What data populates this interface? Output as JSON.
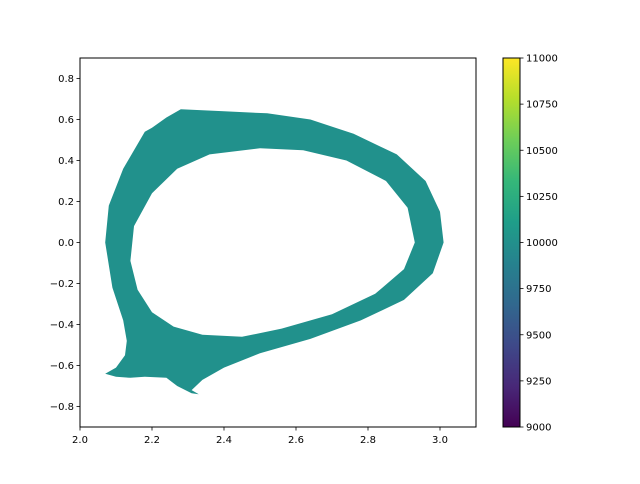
{
  "chart_data": {
    "type": "filled-contour",
    "title": "",
    "xlabel": "",
    "ylabel": "",
    "xlim": [
      2.0,
      3.1
    ],
    "ylim": [
      -0.9,
      0.9
    ],
    "x_ticks": [
      2.0,
      2.2,
      2.4,
      2.6,
      2.8,
      3.0
    ],
    "x_tick_labels": [
      "2.0",
      "2.2",
      "2.4",
      "2.6",
      "2.8",
      "3.0"
    ],
    "y_ticks": [
      0.8,
      0.6,
      0.4,
      0.2,
      0.0,
      -0.2,
      -0.4,
      -0.6,
      -0.8
    ],
    "y_tick_labels": [
      "0.8",
      "0.6",
      "0.4",
      "0.2",
      "0.0",
      "−0.2",
      "−0.4",
      "−0.6",
      "−0.8"
    ],
    "grid": false,
    "fill_value": 10000,
    "fill_color": "#21918c",
    "outer_boundary": [
      [
        2.28,
        0.65
      ],
      [
        2.4,
        0.64
      ],
      [
        2.52,
        0.63
      ],
      [
        2.64,
        0.6
      ],
      [
        2.76,
        0.53
      ],
      [
        2.88,
        0.43
      ],
      [
        2.96,
        0.3
      ],
      [
        3.0,
        0.15
      ],
      [
        3.01,
        0.0
      ],
      [
        2.98,
        -0.15
      ],
      [
        2.9,
        -0.28
      ],
      [
        2.78,
        -0.38
      ],
      [
        2.64,
        -0.47
      ],
      [
        2.5,
        -0.54
      ],
      [
        2.4,
        -0.61
      ],
      [
        2.34,
        -0.67
      ],
      [
        2.31,
        -0.72
      ],
      [
        2.33,
        -0.74
      ],
      [
        2.31,
        -0.735
      ],
      [
        2.27,
        -0.7
      ],
      [
        2.24,
        -0.66
      ],
      [
        2.18,
        -0.655
      ],
      [
        2.14,
        -0.66
      ],
      [
        2.1,
        -0.655
      ],
      [
        2.07,
        -0.64
      ],
      [
        2.1,
        -0.61
      ],
      [
        2.125,
        -0.55
      ],
      [
        2.13,
        -0.48
      ],
      [
        2.12,
        -0.38
      ],
      [
        2.09,
        -0.22
      ],
      [
        2.07,
        0.0
      ],
      [
        2.08,
        0.18
      ],
      [
        2.12,
        0.36
      ],
      [
        2.18,
        0.54
      ],
      [
        2.2,
        0.56
      ],
      [
        2.24,
        0.61
      ]
    ],
    "inner_boundary": [
      [
        2.5,
        0.46
      ],
      [
        2.62,
        0.45
      ],
      [
        2.74,
        0.4
      ],
      [
        2.85,
        0.3
      ],
      [
        2.91,
        0.17
      ],
      [
        2.93,
        0.0
      ],
      [
        2.9,
        -0.13
      ],
      [
        2.82,
        -0.25
      ],
      [
        2.7,
        -0.35
      ],
      [
        2.56,
        -0.42
      ],
      [
        2.45,
        -0.46
      ],
      [
        2.34,
        -0.45
      ],
      [
        2.26,
        -0.41
      ],
      [
        2.2,
        -0.34
      ],
      [
        2.16,
        -0.23
      ],
      [
        2.14,
        -0.09
      ],
      [
        2.15,
        0.08
      ],
      [
        2.2,
        0.24
      ],
      [
        2.27,
        0.36
      ],
      [
        2.36,
        0.43
      ]
    ],
    "colorbar": {
      "min": 9000,
      "max": 11000,
      "ticks": [
        11000,
        10750,
        10500,
        10250,
        10000,
        9750,
        9500,
        9250,
        9000
      ],
      "tick_labels": [
        "11000",
        "10750",
        "10500",
        "10250",
        "10000",
        "9750",
        "9500",
        "9250",
        "9000"
      ],
      "colormap": "viridis",
      "colors": [
        "#440154",
        "#482878",
        "#3e4989",
        "#31688e",
        "#26828e",
        "#1f9e89",
        "#35b779",
        "#6ece58",
        "#b5de2b",
        "#fde725"
      ]
    }
  }
}
